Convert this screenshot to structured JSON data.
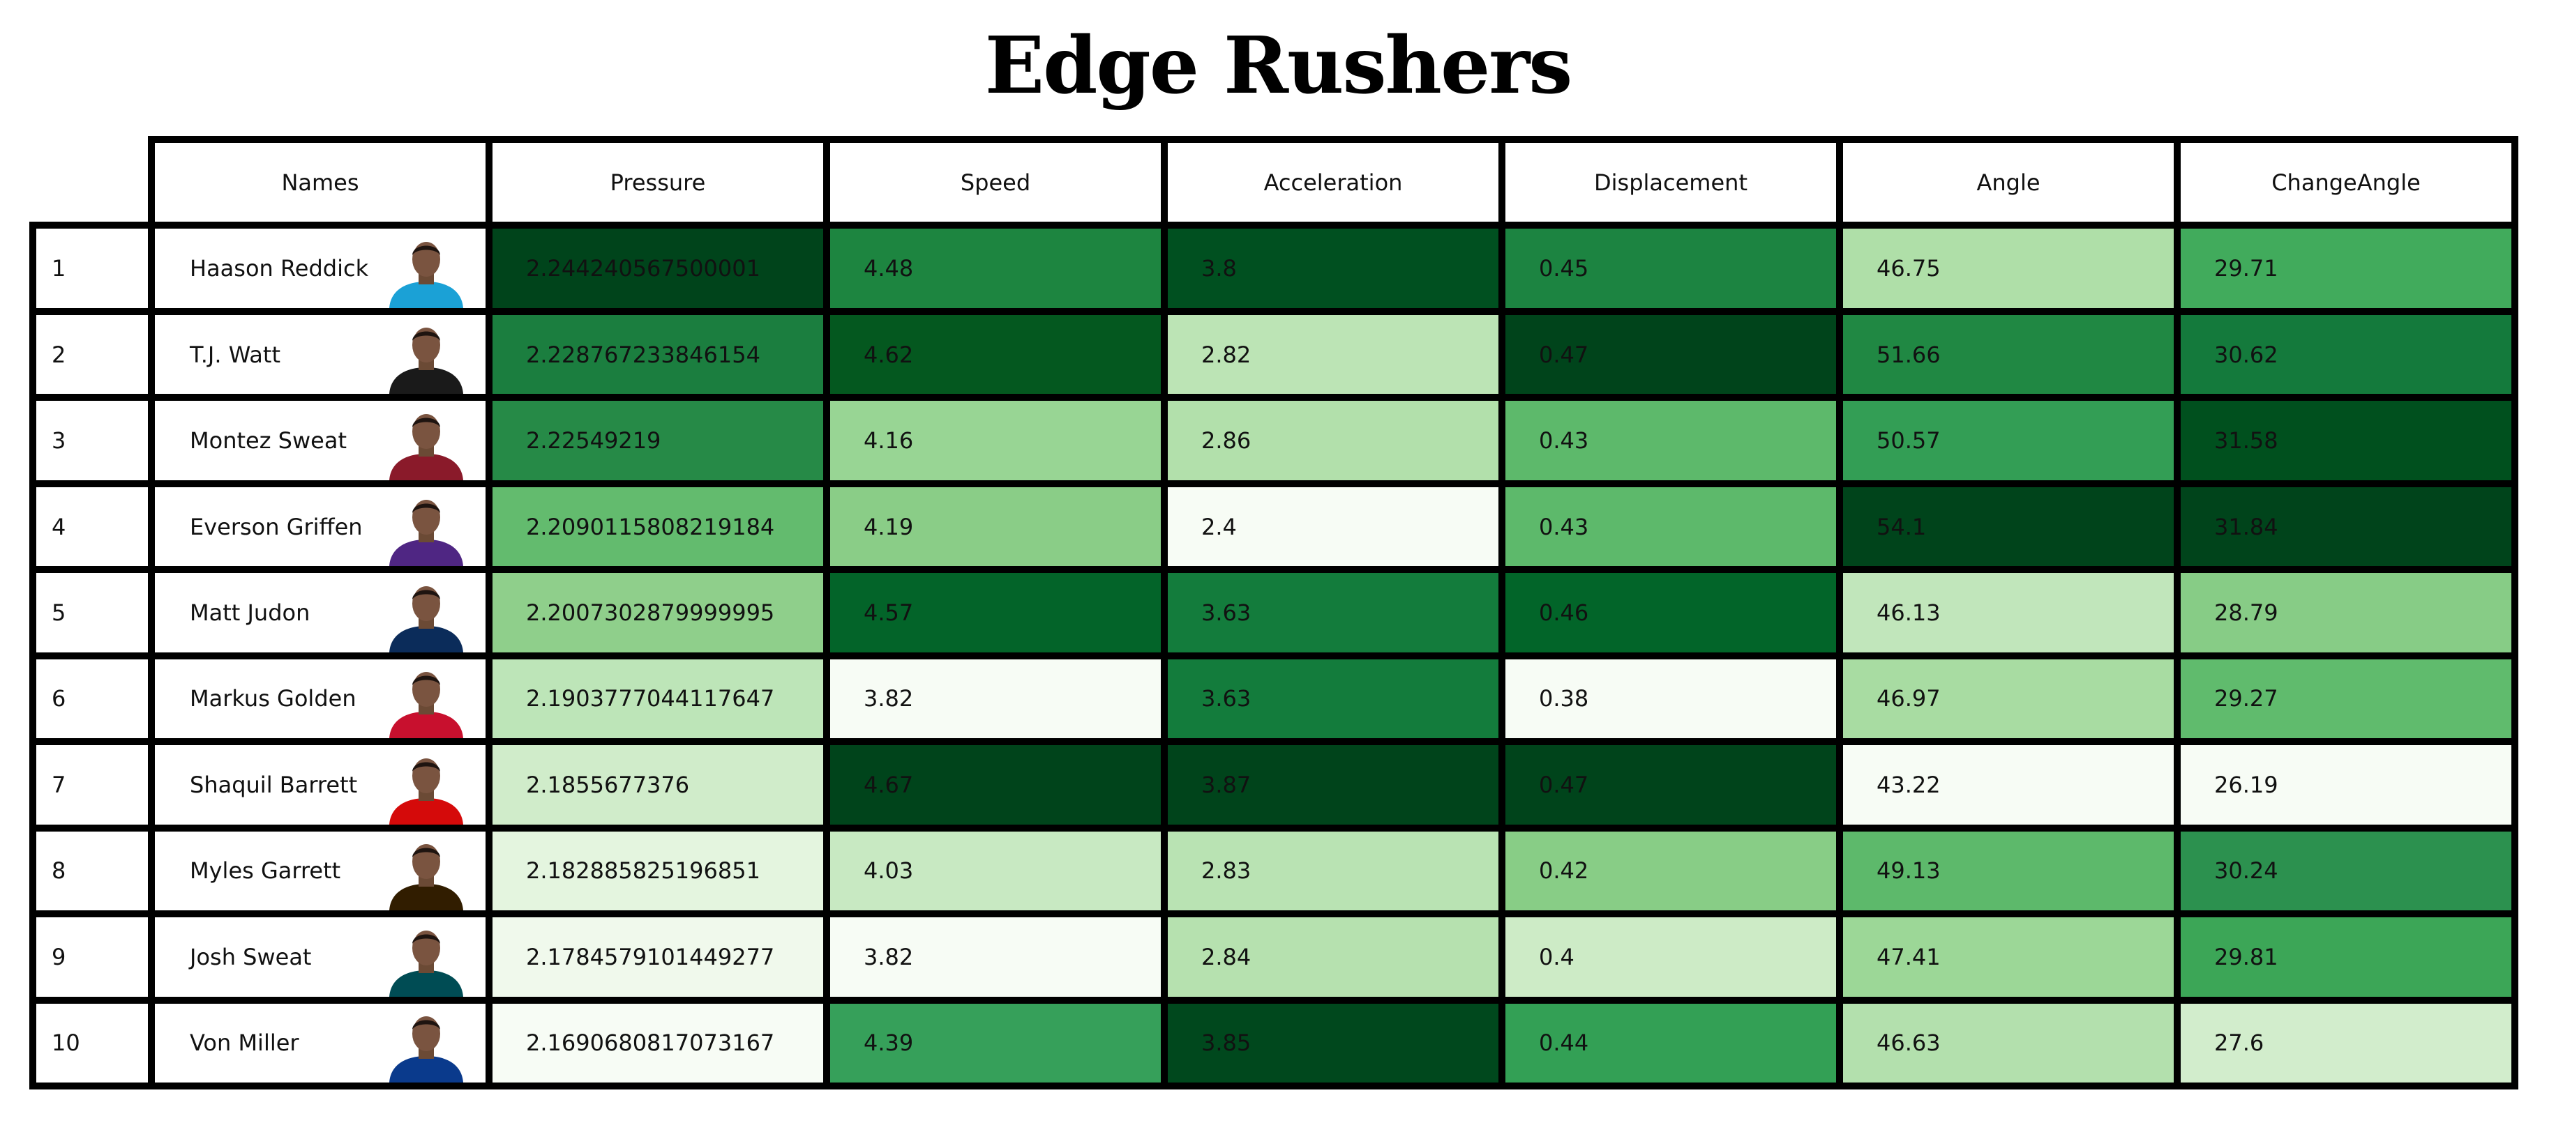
{
  "title": "Edge Rushers",
  "chart_data": {
    "type": "table",
    "title": "Edge Rushers",
    "columns": [
      "Names",
      "Pressure",
      "Speed",
      "Acceleration",
      "Displacement",
      "Angle",
      "ChangeAngle"
    ],
    "color_scale": "Greens",
    "rows": [
      {
        "rank": "1",
        "name": "Haason Reddick",
        "Pressure": "2.244240567500001",
        "Speed": "4.48",
        "Acceleration": "3.8",
        "Displacement": "0.45",
        "Angle": "46.75",
        "ChangeAngle": "29.71"
      },
      {
        "rank": "2",
        "name": "T.J. Watt",
        "Pressure": "2.228767233846154",
        "Speed": "4.62",
        "Acceleration": "2.82",
        "Displacement": "0.47",
        "Angle": "51.66",
        "ChangeAngle": "30.62"
      },
      {
        "rank": "3",
        "name": "Montez Sweat",
        "Pressure": "2.22549219",
        "Speed": "4.16",
        "Acceleration": "2.86",
        "Displacement": "0.43",
        "Angle": "50.57",
        "ChangeAngle": "31.58"
      },
      {
        "rank": "4",
        "name": "Everson Griffen",
        "Pressure": "2.2090115808219184",
        "Speed": "4.19",
        "Acceleration": "2.4",
        "Displacement": "0.43",
        "Angle": "54.1",
        "ChangeAngle": "31.84"
      },
      {
        "rank": "5",
        "name": "Matt Judon",
        "Pressure": "2.2007302879999995",
        "Speed": "4.57",
        "Acceleration": "3.63",
        "Displacement": "0.46",
        "Angle": "46.13",
        "ChangeAngle": "28.79"
      },
      {
        "rank": "6",
        "name": "Markus Golden",
        "Pressure": "2.1903777044117647",
        "Speed": "3.82",
        "Acceleration": "3.63",
        "Displacement": "0.38",
        "Angle": "46.97",
        "ChangeAngle": "29.27"
      },
      {
        "rank": "7",
        "name": "Shaquil Barrett",
        "Pressure": "2.1855677376",
        "Speed": "4.67",
        "Acceleration": "3.87",
        "Displacement": "0.47",
        "Angle": "43.22",
        "ChangeAngle": "26.19"
      },
      {
        "rank": "8",
        "name": "Myles Garrett",
        "Pressure": "2.182885825196851",
        "Speed": "4.03",
        "Acceleration": "2.83",
        "Displacement": "0.42",
        "Angle": "49.13",
        "ChangeAngle": "30.24"
      },
      {
        "rank": "9",
        "name": "Josh Sweat",
        "Pressure": "2.1784579101449277",
        "Speed": "3.82",
        "Acceleration": "2.84",
        "Displacement": "0.4",
        "Angle": "47.41",
        "ChangeAngle": "29.81"
      },
      {
        "rank": "10",
        "name": "Von Miller",
        "Pressure": "2.1690680817073167",
        "Speed": "4.39",
        "Acceleration": "3.85",
        "Displacement": "0.44",
        "Angle": "46.63",
        "ChangeAngle": "27.6"
      }
    ],
    "cell_colors": {
      "Pressure": [
        "#00441b",
        "#1b7e3f",
        "#268a47",
        "#63bb6e",
        "#8fcf8b",
        "#bde5b8",
        "#d0ecca",
        "#e4f5df",
        "#f0f9ec",
        "#f7fcf5"
      ],
      "Speed": [
        "#1d8540",
        "#04581f",
        "#98d594",
        "#8acd87",
        "#036429",
        "#f7fcf5",
        "#00441b",
        "#c8e9c2",
        "#f7fcf5",
        "#36a05a"
      ],
      "Acceleration": [
        "#005020",
        "#bce4b5",
        "#b2e0ab",
        "#f7fcf5",
        "#137c3c",
        "#137c3c",
        "#00441b",
        "#b9e3b3",
        "#b6e1af",
        "#00481d"
      ],
      "Displacement": [
        "#1c8441",
        "#00441b",
        "#5db96b",
        "#5db96b",
        "#026529",
        "#f7fcf5",
        "#00441b",
        "#88cd86",
        "#cdebc6",
        "#33a055"
      ],
      "Angle": [
        "#afdfa8",
        "#208843",
        "#339e55",
        "#00441b",
        "#c1e6bb",
        "#a8dca2",
        "#f7fcf5",
        "#5db96b",
        "#9cd797",
        "#b3e0ad"
      ],
      "ChangeAngle": [
        "#41ab5c",
        "#147a3c",
        "#00501e",
        "#00441b",
        "#87cc86",
        "#60bb6d",
        "#f7fcf5",
        "#2c914f",
        "#3ca657",
        "#d2edcc"
      ]
    },
    "player_colors": [
      "#1ba1d6",
      "#1a1a1a",
      "#8a1a2a",
      "#4f2683",
      "#0b2c5a",
      "#c8102e",
      "#d50a0a",
      "#311d00",
      "#004c54",
      "#0a3a8c"
    ]
  }
}
